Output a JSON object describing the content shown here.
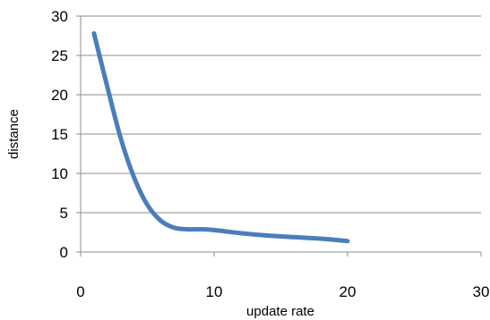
{
  "chart_data": {
    "type": "line",
    "xlabel": "update rate",
    "ylabel": "distance",
    "xlim": [
      0,
      30
    ],
    "ylim": [
      0,
      30
    ],
    "x_ticks": [
      0,
      10,
      20,
      30
    ],
    "y_ticks": [
      0,
      5,
      10,
      15,
      20,
      25,
      30
    ],
    "grid": "horizontal",
    "legend": "none",
    "series": [
      {
        "color": "#4a7ebb",
        "smooth": true,
        "x": [
          1,
          2,
          3,
          4,
          5,
          6,
          7,
          8,
          9,
          10,
          12,
          14,
          16,
          18,
          20
        ],
        "y": [
          27.8,
          21.0,
          14.5,
          9.5,
          6.0,
          4.0,
          3.1,
          2.9,
          2.9,
          2.8,
          2.4,
          2.1,
          1.9,
          1.7,
          1.4
        ]
      }
    ]
  }
}
